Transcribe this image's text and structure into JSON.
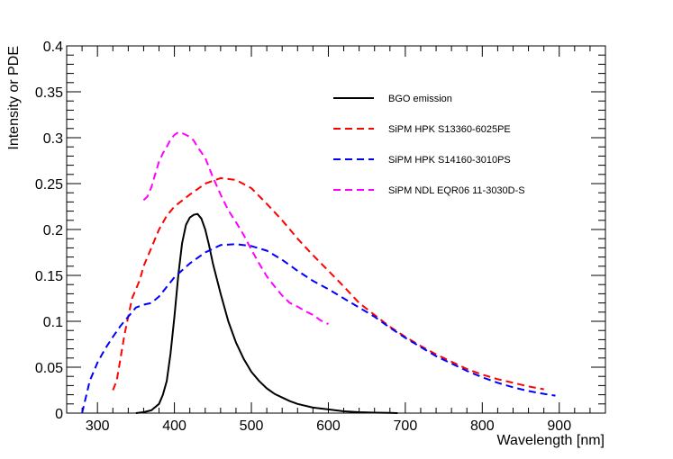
{
  "chart_data": {
    "type": "line",
    "title": "",
    "xlabel": "Wavelength [nm]",
    "ylabel": "Intensity or PDE",
    "xlim": [
      260,
      960
    ],
    "ylim": [
      0,
      0.4
    ],
    "x_ticks": [
      300,
      400,
      500,
      600,
      700,
      800,
      900
    ],
    "x_tick_labels": [
      "300",
      "400",
      "500",
      "600",
      "700",
      "800",
      "900"
    ],
    "y_ticks": [
      0,
      0.05,
      0.1,
      0.15,
      0.2,
      0.25,
      0.3,
      0.35,
      0.4
    ],
    "y_tick_labels": [
      "0",
      "0.05",
      "0.1",
      "0.15",
      "0.2",
      "0.25",
      "0.3",
      "0.35",
      "0.4"
    ],
    "grid": false,
    "legend_position": "top-right",
    "series": [
      {
        "name": "BGO emission",
        "color": "#000000",
        "dash": "solid",
        "x": [
          350,
          360,
          370,
          380,
          385,
          390,
          395,
          400,
          405,
          410,
          415,
          420,
          425,
          430,
          435,
          440,
          445,
          450,
          460,
          470,
          480,
          490,
          500,
          510,
          520,
          530,
          540,
          550,
          560,
          580,
          600,
          620,
          640,
          660,
          680,
          690
        ],
        "y": [
          0.0,
          0.001,
          0.003,
          0.01,
          0.02,
          0.035,
          0.065,
          0.105,
          0.15,
          0.185,
          0.205,
          0.213,
          0.216,
          0.217,
          0.212,
          0.2,
          0.183,
          0.163,
          0.13,
          0.1,
          0.077,
          0.059,
          0.045,
          0.035,
          0.027,
          0.021,
          0.017,
          0.013,
          0.01,
          0.006,
          0.004,
          0.002,
          0.001,
          0.0005,
          0.0002,
          0.0
        ]
      },
      {
        "name": "SiPM HPK S13360-6025PE",
        "color": "#ff0000",
        "dash": "dashed",
        "x": [
          320,
          325,
          330,
          335,
          340,
          345,
          350,
          355,
          360,
          370,
          380,
          390,
          400,
          420,
          440,
          460,
          480,
          500,
          520,
          540,
          560,
          580,
          600,
          620,
          640,
          660,
          680,
          700,
          720,
          740,
          760,
          780,
          800,
          820,
          840,
          860,
          880
        ],
        "y": [
          0.025,
          0.035,
          0.06,
          0.085,
          0.105,
          0.125,
          0.135,
          0.145,
          0.16,
          0.18,
          0.2,
          0.215,
          0.225,
          0.238,
          0.25,
          0.256,
          0.254,
          0.245,
          0.228,
          0.21,
          0.19,
          0.172,
          0.155,
          0.138,
          0.12,
          0.107,
          0.094,
          0.083,
          0.073,
          0.064,
          0.056,
          0.048,
          0.042,
          0.037,
          0.033,
          0.029,
          0.026
        ]
      },
      {
        "name": "SiPM HPK S14160-3010PS",
        "color": "#0000ff",
        "dash": "dashed",
        "x": [
          280,
          290,
          300,
          310,
          320,
          330,
          340,
          350,
          360,
          370,
          380,
          400,
          420,
          440,
          460,
          480,
          500,
          520,
          540,
          560,
          580,
          600,
          620,
          640,
          660,
          680,
          700,
          720,
          740,
          760,
          780,
          800,
          820,
          840,
          860,
          880,
          895
        ],
        "y": [
          0.0,
          0.035,
          0.055,
          0.07,
          0.083,
          0.095,
          0.105,
          0.115,
          0.118,
          0.12,
          0.127,
          0.148,
          0.163,
          0.175,
          0.183,
          0.184,
          0.182,
          0.177,
          0.167,
          0.155,
          0.144,
          0.135,
          0.125,
          0.115,
          0.105,
          0.093,
          0.082,
          0.072,
          0.062,
          0.054,
          0.046,
          0.039,
          0.033,
          0.028,
          0.024,
          0.021,
          0.019
        ]
      },
      {
        "name": "SiPM NDL EQR06 11-3030D-S",
        "color": "#ff00ff",
        "dash": "dashed",
        "x": [
          360,
          365,
          370,
          375,
          380,
          385,
          390,
          395,
          400,
          405,
          410,
          415,
          420,
          425,
          430,
          440,
          450,
          460,
          470,
          480,
          490,
          500,
          510,
          520,
          530,
          540,
          550,
          560,
          570,
          580,
          590,
          600
        ],
        "y": [
          0.232,
          0.236,
          0.246,
          0.26,
          0.274,
          0.283,
          0.29,
          0.298,
          0.303,
          0.306,
          0.305,
          0.303,
          0.301,
          0.297,
          0.29,
          0.278,
          0.257,
          0.238,
          0.221,
          0.208,
          0.194,
          0.178,
          0.163,
          0.149,
          0.138,
          0.128,
          0.12,
          0.116,
          0.111,
          0.107,
          0.101,
          0.097
        ]
      }
    ]
  }
}
